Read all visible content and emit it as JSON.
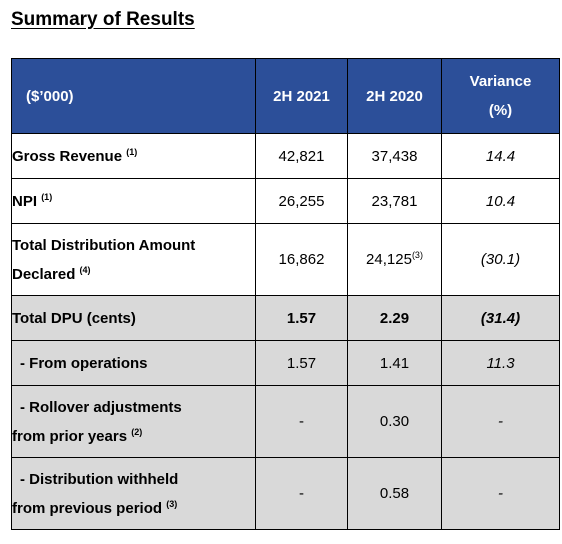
{
  "title": "Summary of Results",
  "table": {
    "header": {
      "label": "($’000)",
      "col1": "2H 2021",
      "col2": "2H 2020",
      "variance_line1": "Variance",
      "variance_line2": "(%)"
    },
    "rows": [
      {
        "label": "Gross Revenue",
        "note": "(1)",
        "v2021": "42,821",
        "v2020": "37,438",
        "v2020_note": "",
        "variance": "14.4"
      },
      {
        "label": "NPI",
        "note": "(1)",
        "v2021": "26,255",
        "v2020": "23,781",
        "v2020_note": "",
        "variance": "10.4"
      },
      {
        "label_line1": "Total Distribution Amount",
        "label_line2": "Declared",
        "note": "(4)",
        "v2021": "16,862",
        "v2020": "24,125",
        "v2020_note": "(3)",
        "variance": "(30.1)"
      },
      {
        "label": "Total DPU (cents)",
        "note": "",
        "v2021": "1.57",
        "v2020": "2.29",
        "v2020_note": "",
        "variance": "(31.4)"
      },
      {
        "label": "- From operations",
        "note": "",
        "v2021": "1.57",
        "v2020": "1.41",
        "v2020_note": "",
        "variance": "11.3"
      },
      {
        "label_line1": "- Rollover adjustments",
        "label_line2": "from prior years",
        "note": "(2)",
        "v2021": "-",
        "v2020": "0.30",
        "v2020_note": "",
        "variance": "-"
      },
      {
        "label_line1": "- Distribution withheld",
        "label_line2": "from previous period",
        "note": "(3)",
        "v2021": "-",
        "v2020": "0.58",
        "v2020_note": "",
        "variance": "-"
      }
    ]
  },
  "colors": {
    "header_bg": "#2c4f99",
    "header_text": "#ffffff",
    "shaded_row": "#d9d9d9"
  }
}
